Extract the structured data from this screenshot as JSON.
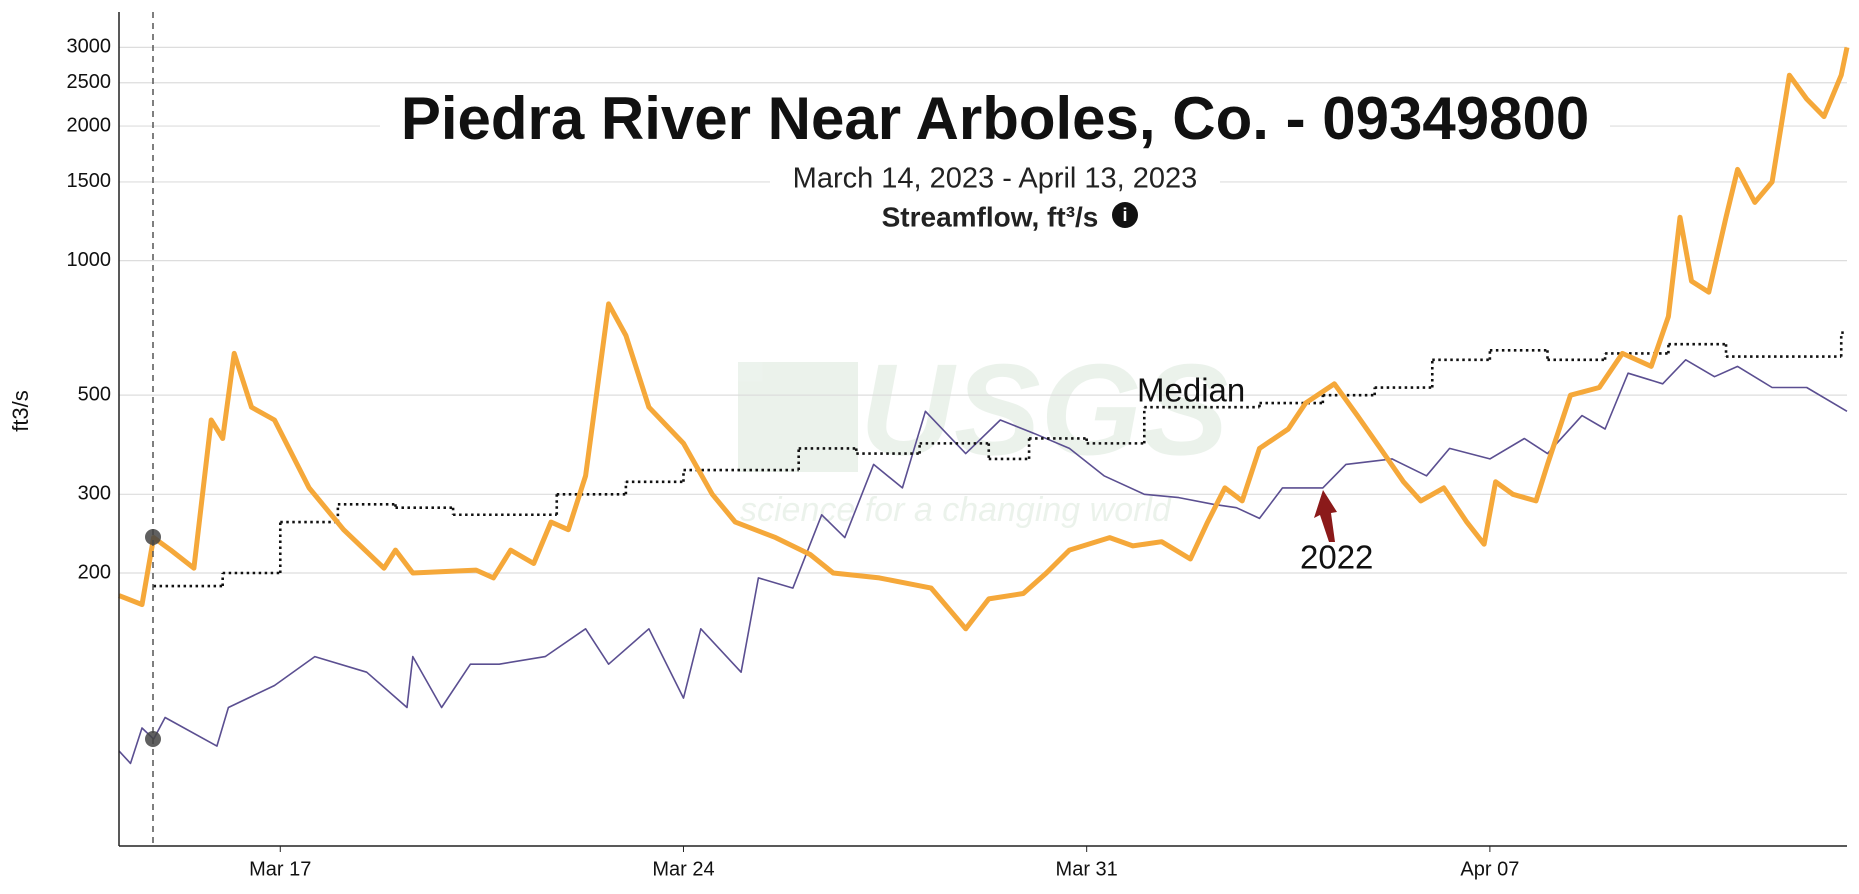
{
  "chart_data": {
    "type": "line",
    "title": "Piedra River Near Arboles, Co. - 09349800",
    "subtitle": "March 14, 2023 - April 13, 2023",
    "variable": "Streamflow, ft³/s",
    "y_label": "ft3/s",
    "watermark": {
      "logo": "USGS",
      "tagline": "science for a changing world"
    },
    "log_y": true,
    "grid": true,
    "xlim": [
      0.2,
      30.2
    ],
    "xticks": [
      {
        "value": 3,
        "label": "Mar 17"
      },
      {
        "value": 10,
        "label": "Mar 24"
      },
      {
        "value": 17,
        "label": "Mar 31"
      },
      {
        "value": 24,
        "label": "Apr 07"
      }
    ],
    "ylim": [
      49,
      3600
    ],
    "yticks": [
      200,
      300,
      500,
      1000,
      1500,
      2000,
      2500,
      3000
    ],
    "series": [
      {
        "color": "#f5a83a",
        "style": "solid",
        "x": [
          0.2,
          0.6,
          0.8,
          1.1,
          1.5,
          1.8,
          2.0,
          2.2,
          2.5,
          2.9,
          3.5,
          4.1,
          4.8,
          5.0,
          5.3,
          6.4,
          6.7,
          7.0,
          7.4,
          7.7,
          8.0,
          8.3,
          8.7,
          9.0,
          9.4,
          10.0,
          10.5,
          10.9,
          11.6,
          12.2,
          12.6,
          13.4,
          14.3,
          14.9,
          15.3,
          15.9,
          16.3,
          16.7,
          17.4,
          17.8,
          18.3,
          18.8,
          19.1,
          19.4,
          19.7,
          20.0,
          20.5,
          20.8,
          21.3,
          21.7,
          22.1,
          22.5,
          22.8,
          23.2,
          23.6,
          23.9,
          24.1,
          24.4,
          24.8,
          25.0,
          25.4,
          25.9,
          26.3,
          26.8,
          27.1,
          27.3,
          27.5,
          27.8,
          28.1,
          28.3,
          28.6,
          28.9,
          29.2,
          29.5,
          29.8,
          30.1,
          30.2
        ],
        "values": [
          178,
          170,
          240,
          225,
          205,
          440,
          400,
          620,
          470,
          440,
          310,
          250,
          205,
          225,
          200,
          203,
          195,
          225,
          210,
          260,
          250,
          330,
          800,
          680,
          470,
          390,
          300,
          260,
          240,
          220,
          200,
          195,
          185,
          150,
          175,
          180,
          200,
          225,
          240,
          230,
          235,
          215,
          260,
          310,
          290,
          380,
          420,
          480,
          530,
          450,
          380,
          320,
          290,
          310,
          260,
          232,
          320,
          300,
          290,
          350,
          500,
          520,
          620,
          580,
          750,
          1250,
          900,
          850,
          1250,
          1600,
          1350,
          1500,
          2600,
          2300,
          2100,
          2600,
          3000
        ]
      },
      {
        "name": "2022",
        "color": "#5b4f91",
        "style": "solid",
        "x": [
          0.2,
          0.4,
          0.6,
          0.8,
          1.0,
          1.9,
          2.1,
          2.9,
          3.6,
          4.5,
          5.2,
          5.3,
          5.8,
          6.3,
          6.8,
          7.6,
          8.3,
          8.7,
          9.4,
          10.0,
          10.3,
          11.0,
          11.3,
          11.9,
          12.4,
          12.8,
          13.3,
          13.8,
          14.2,
          14.9,
          15.5,
          16.1,
          16.7,
          17.3,
          18.0,
          18.6,
          19.2,
          19.6,
          20.0,
          20.4,
          21.1,
          21.5,
          22.3,
          22.9,
          23.3,
          24.0,
          24.6,
          25.0,
          25.6,
          26.0,
          26.4,
          27.0,
          27.4,
          27.9,
          28.3,
          28.9,
          29.5,
          30.2
        ],
        "values": [
          80,
          75,
          90,
          85,
          95,
          82,
          100,
          112,
          130,
          120,
          100,
          130,
          100,
          125,
          125,
          130,
          150,
          125,
          150,
          105,
          150,
          120,
          195,
          185,
          270,
          240,
          350,
          310,
          460,
          370,
          440,
          410,
          380,
          330,
          300,
          295,
          285,
          280,
          265,
          310,
          310,
          350,
          360,
          330,
          380,
          360,
          400,
          370,
          450,
          420,
          560,
          530,
          600,
          550,
          580,
          520,
          520,
          460
        ]
      },
      {
        "name": "Median",
        "color": "#111111",
        "style": "step",
        "x": [
          0.8,
          2.0,
          3.0,
          4.0,
          5.0,
          6.0,
          7.8,
          9.0,
          10.0,
          12.0,
          13.0,
          14.1,
          15.3,
          16.0,
          17.0,
          18.0,
          20.0,
          21.1,
          22.0,
          23.0,
          24.0,
          25.0,
          26.0,
          27.1,
          28.1,
          30.1
        ],
        "values": [
          187,
          200,
          260,
          285,
          280,
          270,
          300,
          320,
          340,
          380,
          370,
          390,
          360,
          400,
          390,
          470,
          480,
          500,
          520,
          600,
          630,
          600,
          620,
          650,
          610,
          690
        ]
      }
    ]
  }
}
